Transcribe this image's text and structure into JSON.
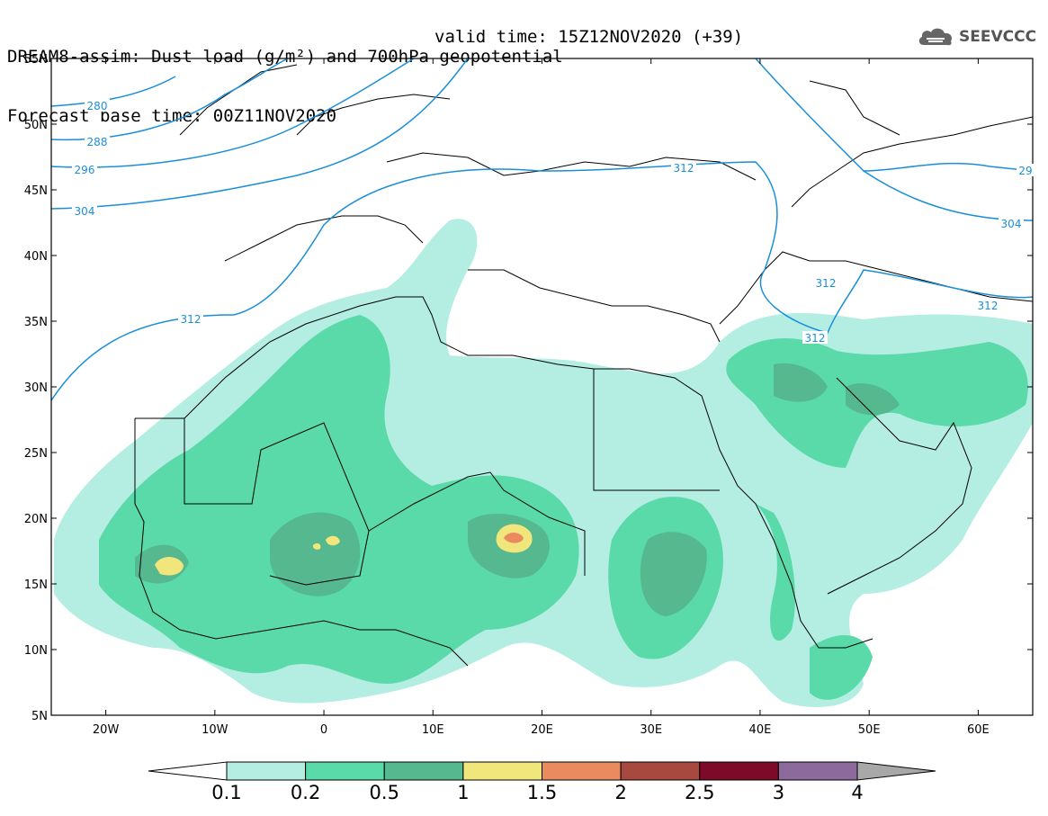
{
  "title": {
    "line1": "DREAM8-assim: Dust load (g/m²) and 700hPa geopotential",
    "line2": "Forecast base time: 00Z11NOV2020",
    "valid": "valid time: 15Z12NOV2020 (+39)"
  },
  "logo": {
    "text": "SEEVCCC",
    "icon": "cloud-icon"
  },
  "axes": {
    "lat_labels": [
      "55N",
      "50N",
      "45N",
      "40N",
      "35N",
      "30N",
      "25N",
      "20N",
      "15N",
      "10N",
      "5N"
    ],
    "lon_labels": [
      "20W",
      "10W",
      "0",
      "10E",
      "20E",
      "30E",
      "40E",
      "50E",
      "60E"
    ],
    "lat_range": [
      5,
      55
    ],
    "lon_range": [
      -25,
      65
    ]
  },
  "contour_labels": [
    "280",
    "288",
    "296",
    "304",
    "312",
    "312",
    "312",
    "312",
    "312",
    "304",
    "29"
  ],
  "colorbar": {
    "labels": [
      "0.1",
      "0.2",
      "0.5",
      "1",
      "1.5",
      "2",
      "2.5",
      "3",
      "4"
    ],
    "colors": [
      "#ffffff",
      "#b4ede2",
      "#5ad9a9",
      "#55b88e",
      "#f1e67c",
      "#e98a5f",
      "#a8493f",
      "#7d0a28",
      "#8c6a9c",
      "#a8a8a8"
    ],
    "contour_color": "#1a8fd8"
  }
}
